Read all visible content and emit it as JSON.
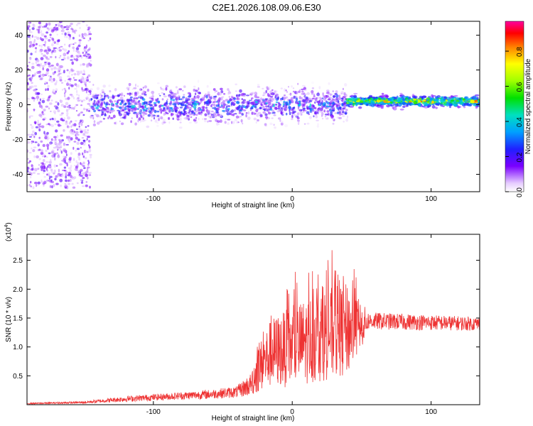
{
  "title": "C2E1.2026.108.09.06.E30",
  "chart_data": [
    {
      "type": "heatmap",
      "name": "spectrogram",
      "xlabel": "Height of straight line (km)",
      "ylabel": "Frequency (Hz)",
      "xlim": [
        -191,
        135
      ],
      "ylim": [
        -50,
        48
      ],
      "xticks": [
        -100,
        0,
        100
      ],
      "xtick_labels": [
        "-100",
        "0",
        "100"
      ],
      "yticks": [
        -40,
        -20,
        0,
        20,
        40
      ],
      "ytick_labels": [
        "-40",
        "-20",
        "0",
        "20",
        "40"
      ],
      "colorbar": {
        "label": "Normalized spectral amplitude",
        "range": [
          0.0,
          0.97
        ],
        "ticks": [
          0.0,
          0.2,
          0.4,
          0.6,
          0.8
        ],
        "tick_labels": [
          "0.0",
          "0.2",
          "0.4",
          "0.6",
          "0.8"
        ]
      },
      "regions": [
        {
          "x": [
            -191,
            -145
          ],
          "freq_center": 0,
          "freq_spread": 48,
          "amplitude": [
            0.05,
            0.2
          ],
          "description": "broadband noise"
        },
        {
          "x": [
            -145,
            40
          ],
          "freq_center": 0,
          "freq_spread": 10,
          "amplitude": [
            0.1,
            0.45
          ]
        },
        {
          "x": [
            40,
            135
          ],
          "freq_center": 2,
          "freq_spread": 3,
          "amplitude": [
            0.4,
            0.95
          ]
        }
      ]
    },
    {
      "type": "line",
      "name": "snr",
      "xlabel": "Height of straight line (km)",
      "ylabel": "SNR (10 * v/v)",
      "y_multiplier_label": "(x10",
      "y_multiplier_exp": "4",
      "xlim": [
        -191,
        135
      ],
      "ylim": [
        0,
        2.95
      ],
      "xticks": [
        -100,
        0,
        100
      ],
      "xtick_labels": [
        "-100",
        "0",
        "100"
      ],
      "yticks": [
        0.5,
        1.0,
        1.5,
        2.0,
        2.5
      ],
      "ytick_labels": [
        "0.5",
        "1.0",
        "1.5",
        "2.0",
        "2.5"
      ],
      "color": "#ee3333",
      "envelope": [
        {
          "x": -191,
          "mean": 0.02,
          "spread": 0.01
        },
        {
          "x": -150,
          "mean": 0.04,
          "spread": 0.02
        },
        {
          "x": -120,
          "mean": 0.1,
          "spread": 0.05
        },
        {
          "x": -90,
          "mean": 0.14,
          "spread": 0.06
        },
        {
          "x": -60,
          "mean": 0.18,
          "spread": 0.08
        },
        {
          "x": -40,
          "mean": 0.22,
          "spread": 0.1
        },
        {
          "x": -30,
          "mean": 0.35,
          "spread": 0.2
        },
        {
          "x": -25,
          "mean": 0.6,
          "spread": 0.4
        },
        {
          "x": -15,
          "mean": 0.9,
          "spread": 0.6
        },
        {
          "x": 0,
          "mean": 1.0,
          "spread": 0.7
        },
        {
          "x": 20,
          "mean": 1.2,
          "spread": 0.8
        },
        {
          "x": 40,
          "mean": 1.3,
          "spread": 0.8
        },
        {
          "x": 48,
          "mean": 1.35,
          "spread": 0.5
        },
        {
          "x": 55,
          "mean": 1.45,
          "spread": 0.15
        },
        {
          "x": 135,
          "mean": 1.4,
          "spread": 0.12
        }
      ]
    }
  ]
}
